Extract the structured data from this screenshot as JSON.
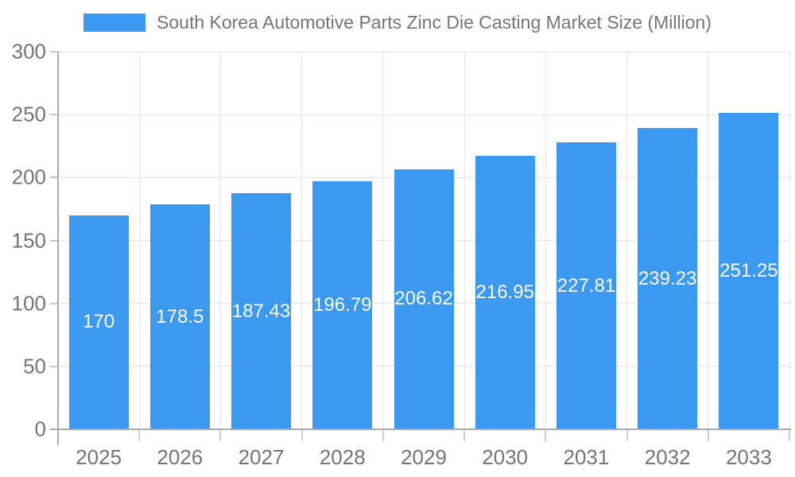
{
  "legend": {
    "label": "South Korea Automotive Parts Zinc Die Casting Market Size (Million)",
    "swatch_color": "#3B99F0"
  },
  "chart_data": {
    "type": "bar",
    "title": "South Korea Automotive Parts Zinc Die Casting Market Size (Million)",
    "series_name": "South Korea Automotive Parts Zinc Die Casting Market Size (Million)",
    "categories": [
      "2025",
      "2026",
      "2027",
      "2028",
      "2029",
      "2030",
      "2031",
      "2032",
      "2033"
    ],
    "values": [
      170,
      178.5,
      187.43,
      196.79,
      206.62,
      216.95,
      227.81,
      239.23,
      251.25
    ],
    "value_labels": [
      "170",
      "178.5",
      "187.43",
      "196.79",
      "206.62",
      "216.95",
      "227.81",
      "239.23",
      "251.25"
    ],
    "xlabel": "",
    "ylabel": "",
    "ylim": [
      0,
      300
    ],
    "yticks": [
      0,
      50,
      100,
      150,
      200,
      250,
      300
    ],
    "grid": true,
    "legend_position": "top-center",
    "bar_color": "#3B99F0",
    "bar_label_color": "#ffffff",
    "axis_text_color": "#757575",
    "grid_color": "#e4e4e4",
    "axis_line_color": "#ababab"
  }
}
